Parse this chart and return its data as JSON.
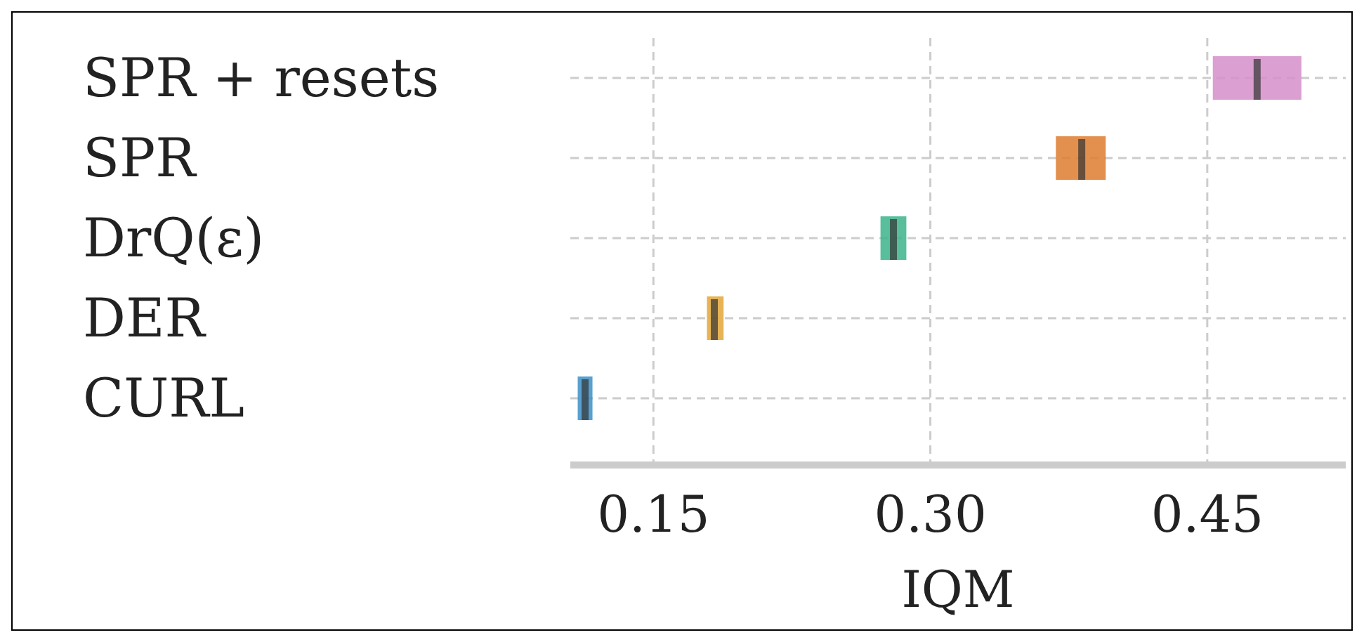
{
  "chart_data": {
    "type": "box",
    "orientation": "horizontal",
    "xlabel": "IQM",
    "categories": [
      "SPR + resets",
      "SPR",
      "DrQ(ε)",
      "DER",
      "CURL"
    ],
    "colors": [
      "#d58fc9",
      "#de7d30",
      "#3bb38a",
      "#e3a638",
      "#3b8fc4"
    ],
    "boxes": [
      {
        "low": 0.453,
        "q1": 0.453,
        "median": 0.477,
        "q3": 0.501,
        "high": 0.501
      },
      {
        "low": 0.368,
        "q1": 0.368,
        "median": 0.382,
        "q3": 0.395,
        "high": 0.395
      },
      {
        "low": 0.273,
        "q1": 0.273,
        "median": 0.28,
        "q3": 0.287,
        "high": 0.287
      },
      {
        "low": 0.179,
        "q1": 0.179,
        "median": 0.183,
        "q3": 0.188,
        "high": 0.188
      },
      {
        "low": 0.109,
        "q1": 0.109,
        "median": 0.113,
        "q3": 0.117,
        "high": 0.117
      }
    ],
    "xlim": [
      0.105,
      0.525
    ],
    "xticks": [
      {
        "value": 0.15,
        "label": "0.15"
      },
      {
        "value": 0.3,
        "label": "0.30"
      },
      {
        "value": 0.45,
        "label": "0.45"
      }
    ],
    "grid": true
  }
}
